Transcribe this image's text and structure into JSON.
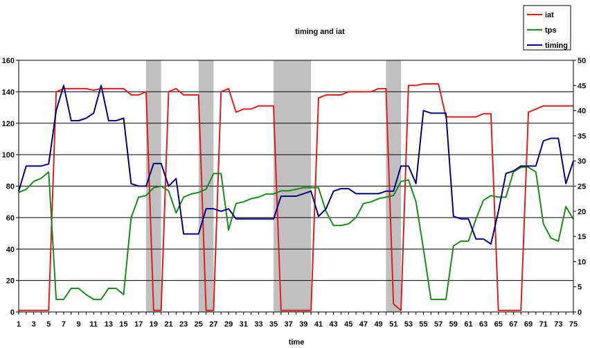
{
  "chart_data": {
    "type": "line",
    "title": "timing and iat",
    "xlabel": "time",
    "ylabel": "",
    "y2label": "",
    "ylim": [
      0,
      160
    ],
    "y2lim": [
      0,
      50
    ],
    "yticks": [
      0,
      20,
      40,
      60,
      80,
      100,
      120,
      140,
      160
    ],
    "y2ticks": [
      0,
      5,
      10,
      15,
      20,
      25,
      30,
      35,
      40,
      45,
      50
    ],
    "xticks": [
      "1",
      "3",
      "5",
      "7",
      "9",
      "11",
      "13",
      "15",
      "17",
      "19",
      "21",
      "23",
      "25",
      "27",
      "29",
      "31",
      "33",
      "35",
      "37",
      "39",
      "41",
      "43",
      "45",
      "47",
      "49",
      "51",
      "53",
      "55",
      "57",
      "59",
      "61",
      "63",
      "65",
      "67",
      "69",
      "71",
      "73",
      "75"
    ],
    "x": [
      1,
      2,
      3,
      4,
      5,
      6,
      7,
      8,
      9,
      10,
      11,
      12,
      13,
      14,
      15,
      16,
      17,
      18,
      19,
      20,
      21,
      22,
      23,
      24,
      25,
      26,
      27,
      28,
      29,
      30,
      31,
      32,
      33,
      34,
      35,
      36,
      37,
      38,
      39,
      40,
      41,
      42,
      43,
      44,
      45,
      46,
      47,
      48,
      49,
      50,
      51,
      52,
      53,
      54,
      55,
      56,
      57,
      58,
      59,
      60,
      61,
      62,
      63,
      64,
      65,
      66,
      67,
      68,
      69,
      70,
      71,
      72,
      73,
      74,
      75
    ],
    "grid": true,
    "legend_position": "top-right",
    "shaded_regions": [
      [
        18,
        20
      ],
      [
        25,
        27
      ],
      [
        35,
        40
      ],
      [
        50,
        52
      ]
    ],
    "series": [
      {
        "name": "iat",
        "axis": "left",
        "color": "#e31a1c",
        "values": [
          1,
          1,
          1,
          1,
          1,
          140,
          142,
          142,
          142,
          142,
          141,
          142,
          142,
          142,
          142,
          138,
          138,
          140,
          1,
          1,
          140,
          142,
          138,
          138,
          138,
          1,
          1,
          140,
          142,
          127,
          129,
          129,
          131,
          131,
          131,
          1,
          1,
          1,
          1,
          1,
          136,
          138,
          138,
          138,
          140,
          140,
          140,
          140,
          142,
          142,
          5,
          1,
          144,
          144,
          145,
          145,
          145,
          124,
          124,
          124,
          124,
          124,
          126,
          126,
          1,
          1,
          1,
          1,
          127,
          129,
          131,
          131,
          131,
          131,
          131
        ]
      },
      {
        "name": "tps",
        "axis": "left",
        "color": "#1a8a1a",
        "values": [
          76,
          78,
          83,
          85,
          89,
          8,
          8,
          15,
          15,
          11,
          8,
          8,
          15,
          15,
          11,
          60,
          73,
          74,
          79,
          80,
          77,
          63,
          73,
          75,
          76,
          78,
          88,
          88,
          52,
          69,
          70,
          72,
          73,
          75,
          75,
          77,
          77,
          78,
          79,
          79,
          79,
          64,
          55,
          55,
          56,
          60,
          69,
          70,
          72,
          73,
          74,
          83,
          84,
          70,
          40,
          8,
          8,
          8,
          42,
          45,
          45,
          59,
          71,
          74,
          73,
          73,
          89,
          92,
          92,
          89,
          56,
          47,
          45,
          67,
          59
        ]
      },
      {
        "name": "timing",
        "axis": "right",
        "color": "#00007f",
        "values": [
          24,
          29,
          29,
          29,
          29.4,
          40,
          45,
          38,
          38,
          38.5,
          39.5,
          45,
          38,
          38,
          38.5,
          25.5,
          25,
          25,
          29.5,
          29.5,
          25,
          26.5,
          15.5,
          15.5,
          15.5,
          20.5,
          20.5,
          20,
          20.5,
          18.5,
          18.5,
          18.5,
          18.5,
          18.5,
          18.5,
          23,
          23,
          23,
          23.5,
          24,
          19,
          20.5,
          24,
          24.5,
          24.5,
          23.5,
          23.5,
          23.5,
          23.5,
          24,
          24,
          29,
          29,
          25.5,
          40,
          39.5,
          39.5,
          39.5,
          19,
          18.5,
          18.5,
          14.5,
          14.5,
          13.5,
          20,
          27.5,
          28,
          29,
          29,
          29,
          34,
          34.5,
          34.5,
          25.5,
          30
        ]
      }
    ]
  }
}
